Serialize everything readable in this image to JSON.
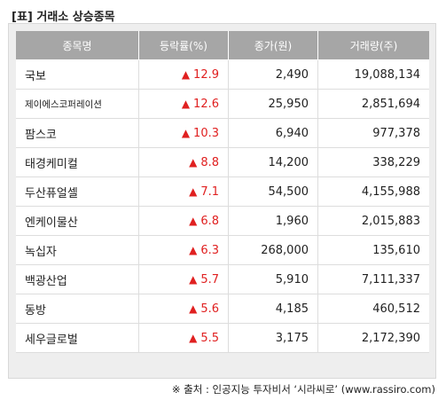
{
  "header": {
    "title": "[표] 거래소 상승종목"
  },
  "icons": {
    "up_arrow": "up-triangle"
  },
  "colors": {
    "up": "#e02020",
    "header_bg": "#a6a6a6",
    "frame_bg": "#eeeeee"
  },
  "table": {
    "columns": [
      "종목명",
      "등락률(%)",
      "종가(원)",
      "거래량(주)"
    ],
    "arrow_glyph": "▲",
    "rows": [
      {
        "name": "국보",
        "rate": "12.9",
        "price": "2,490",
        "volume": "19,088,134"
      },
      {
        "name": "제이에스코퍼레이션",
        "rate": "12.6",
        "price": "25,950",
        "volume": "2,851,694"
      },
      {
        "name": "팜스코",
        "rate": "10.3",
        "price": "6,940",
        "volume": "977,378"
      },
      {
        "name": "태경케미컬",
        "rate": "8.8",
        "price": "14,200",
        "volume": "338,229"
      },
      {
        "name": "두산퓨얼셀",
        "rate": "7.1",
        "price": "54,500",
        "volume": "4,155,988"
      },
      {
        "name": "엔케이물산",
        "rate": "6.8",
        "price": "1,960",
        "volume": "2,015,883"
      },
      {
        "name": "녹십자",
        "rate": "6.3",
        "price": "268,000",
        "volume": "135,610"
      },
      {
        "name": "백광산업",
        "rate": "5.7",
        "price": "5,910",
        "volume": "7,111,337"
      },
      {
        "name": "동방",
        "rate": "5.6",
        "price": "4,185",
        "volume": "460,512"
      },
      {
        "name": "세우글로벌",
        "rate": "5.5",
        "price": "3,175",
        "volume": "2,172,390"
      }
    ]
  },
  "footer": {
    "source": "※ 출처 : 인공지능 투자비서 ‘시라씨로’ (www.rassiro.com)"
  }
}
